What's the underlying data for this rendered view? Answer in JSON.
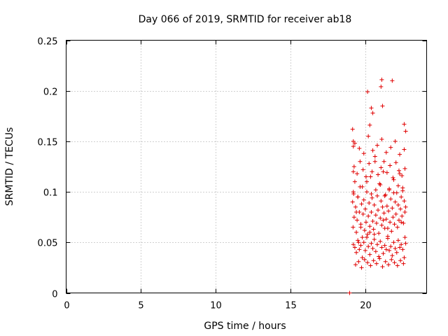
{
  "chart_data": {
    "type": "scatter",
    "title": "Day 066 of 2019, SRMTID for receiver ab18",
    "xlabel": "GPS time / hours",
    "ylabel": "SRMTID / TECUs",
    "xlim": [
      0,
      24.1
    ],
    "ylim": [
      0,
      0.25
    ],
    "xticks": [
      0,
      5,
      10,
      15,
      20
    ],
    "xtick_labels": [
      "0",
      "5",
      "10",
      "15",
      "20"
    ],
    "yticks": [
      0,
      0.05,
      0.1,
      0.15,
      0.2,
      0.25
    ],
    "ytick_labels": [
      "0",
      "0.05",
      "0.1",
      "0.15",
      "0.2",
      "0.25"
    ],
    "grid": true,
    "marker": "plus",
    "color": "#e00000",
    "series": [
      {
        "name": "SRMTID",
        "x": [
          18.95,
          19.15,
          19.18,
          19.2,
          19.22,
          19.25,
          19.3,
          19.35,
          19.4,
          19.45,
          19.5,
          19.55,
          19.6,
          19.65,
          19.7,
          19.75,
          19.8,
          19.85,
          19.9,
          19.95,
          20.0,
          20.05,
          20.1,
          20.15,
          20.2,
          20.25,
          20.3,
          20.35,
          20.4,
          20.45,
          20.5,
          20.55,
          20.6,
          20.65,
          20.7,
          20.75,
          20.8,
          20.85,
          20.9,
          20.95,
          21.0,
          21.05,
          21.1,
          21.15,
          21.2,
          21.25,
          21.3,
          21.35,
          21.4,
          21.45,
          21.5,
          21.55,
          21.6,
          21.65,
          21.7,
          21.75,
          21.8,
          21.85,
          21.9,
          21.95,
          22.0,
          22.05,
          22.1,
          22.15,
          22.2,
          22.25,
          22.3,
          22.35,
          22.4,
          22.45,
          22.5,
          22.55,
          22.6,
          22.65,
          22.7,
          19.2,
          19.3,
          19.4,
          19.5,
          19.6,
          19.7,
          19.8,
          19.9,
          20.0,
          20.1,
          20.2,
          20.3,
          20.4,
          20.5,
          20.6,
          20.7,
          20.8,
          20.9,
          21.0,
          21.1,
          21.2,
          21.3,
          21.4,
          21.5,
          21.6,
          21.7,
          21.8,
          21.9,
          22.0,
          22.1,
          22.2,
          22.3,
          22.4,
          22.5,
          22.6,
          22.7,
          19.25,
          19.45,
          19.65,
          19.85,
          20.05,
          20.25,
          20.45,
          20.65,
          20.85,
          21.05,
          21.25,
          21.45,
          21.65,
          21.85,
          22.05,
          22.25,
          22.45,
          22.65,
          19.35,
          19.55,
          19.75,
          19.95,
          20.15,
          20.35,
          20.55,
          20.75,
          20.95,
          21.15,
          21.35,
          21.55,
          21.75,
          21.95,
          22.15,
          22.35,
          22.55,
          19.15,
          19.3,
          19.6,
          19.9,
          20.2,
          20.5,
          20.8,
          21.1,
          21.4,
          21.7,
          22.0,
          22.3,
          22.6,
          19.2,
          19.5,
          19.8,
          20.1,
          20.4,
          20.7,
          21.0,
          21.3,
          21.6,
          21.9,
          22.2,
          22.5,
          20.15,
          20.3,
          20.4,
          20.5,
          21.05,
          21.1,
          21.15,
          21.8,
          22.6,
          22.7,
          19.2,
          19.2,
          19.4,
          19.7,
          20.3,
          20.6,
          21.2,
          21.5,
          22.4,
          22.65
        ],
        "y": [
          0.0,
          0.09,
          0.065,
          0.12,
          0.098,
          0.075,
          0.11,
          0.085,
          0.06,
          0.072,
          0.095,
          0.05,
          0.08,
          0.105,
          0.068,
          0.088,
          0.055,
          0.078,
          0.092,
          0.062,
          0.083,
          0.07,
          0.1,
          0.058,
          0.076,
          0.089,
          0.066,
          0.115,
          0.08,
          0.094,
          0.071,
          0.063,
          0.087,
          0.13,
          0.077,
          0.069,
          0.096,
          0.082,
          0.059,
          0.108,
          0.074,
          0.091,
          0.067,
          0.085,
          0.12,
          0.079,
          0.064,
          0.097,
          0.073,
          0.086,
          0.056,
          0.081,
          0.102,
          0.07,
          0.093,
          0.061,
          0.084,
          0.075,
          0.112,
          0.068,
          0.09,
          0.078,
          0.099,
          0.065,
          0.087,
          0.072,
          0.118,
          0.083,
          0.095,
          0.076,
          0.104,
          0.069,
          0.091,
          0.08,
          0.085,
          0.048,
          0.045,
          0.04,
          0.052,
          0.043,
          0.047,
          0.035,
          0.05,
          0.042,
          0.055,
          0.046,
          0.038,
          0.049,
          0.044,
          0.053,
          0.041,
          0.048,
          0.036,
          0.051,
          0.045,
          0.039,
          0.047,
          0.043,
          0.054,
          0.042,
          0.046,
          0.037,
          0.05,
          0.044,
          0.04,
          0.052,
          0.045,
          0.048,
          0.043,
          0.035,
          0.049,
          0.125,
          0.118,
          0.13,
          0.122,
          0.115,
          0.128,
          0.12,
          0.135,
          0.117,
          0.124,
          0.13,
          0.119,
          0.126,
          0.114,
          0.129,
          0.121,
          0.116,
          0.123,
          0.028,
          0.031,
          0.025,
          0.033,
          0.03,
          0.027,
          0.032,
          0.029,
          0.034,
          0.026,
          0.031,
          0.028,
          0.033,
          0.03,
          0.027,
          0.032,
          0.029,
          0.162,
          0.148,
          0.143,
          0.138,
          0.155,
          0.141,
          0.146,
          0.152,
          0.139,
          0.144,
          0.15,
          0.137,
          0.142,
          0.1,
          0.095,
          0.105,
          0.11,
          0.098,
          0.102,
          0.107,
          0.096,
          0.103,
          0.099,
          0.106,
          0.101,
          0.199,
          0.166,
          0.183,
          0.178,
          0.204,
          0.211,
          0.185,
          0.21,
          0.167,
          0.16,
          0.15,
          0.145,
          0.08,
          0.065,
          0.06,
          0.058,
          0.072,
          0.064,
          0.07,
          0.055
        ]
      }
    ]
  }
}
